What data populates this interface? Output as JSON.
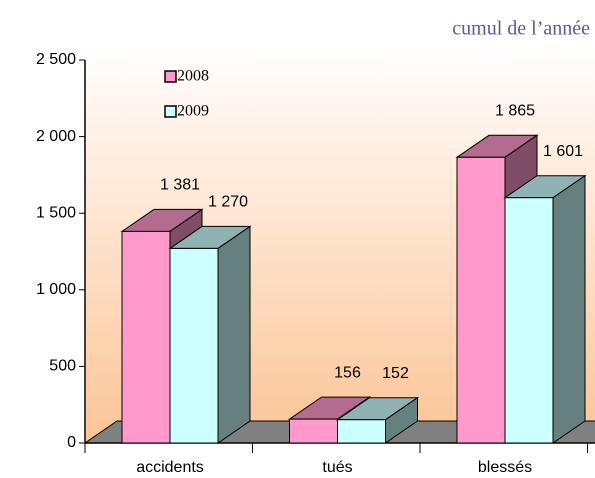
{
  "chart_data": {
    "type": "bar3d",
    "title": "cumul de l’année",
    "categories": [
      "accidents",
      "tués",
      "blessés"
    ],
    "series": [
      {
        "name": "2008",
        "color": "#ff99cc",
        "values": [
          1381,
          156,
          1865
        ],
        "value_labels": [
          "1 381",
          "156",
          "1 865"
        ]
      },
      {
        "name": "2009",
        "color": "#ccffff",
        "values": [
          1270,
          152,
          1601
        ],
        "value_labels": [
          "1 270",
          "152",
          "1 601"
        ]
      }
    ],
    "ylim": [
      0,
      2500
    ],
    "yticks": [
      0,
      {
        "value": 500,
        "label": "500"
      },
      {
        "value": 1000,
        "label": "1 000"
      },
      {
        "value": 1500,
        "label": "1 500"
      },
      {
        "value": 2000,
        "label": "2 000"
      },
      {
        "value": 2500,
        "label": "2 500"
      }
    ]
  }
}
